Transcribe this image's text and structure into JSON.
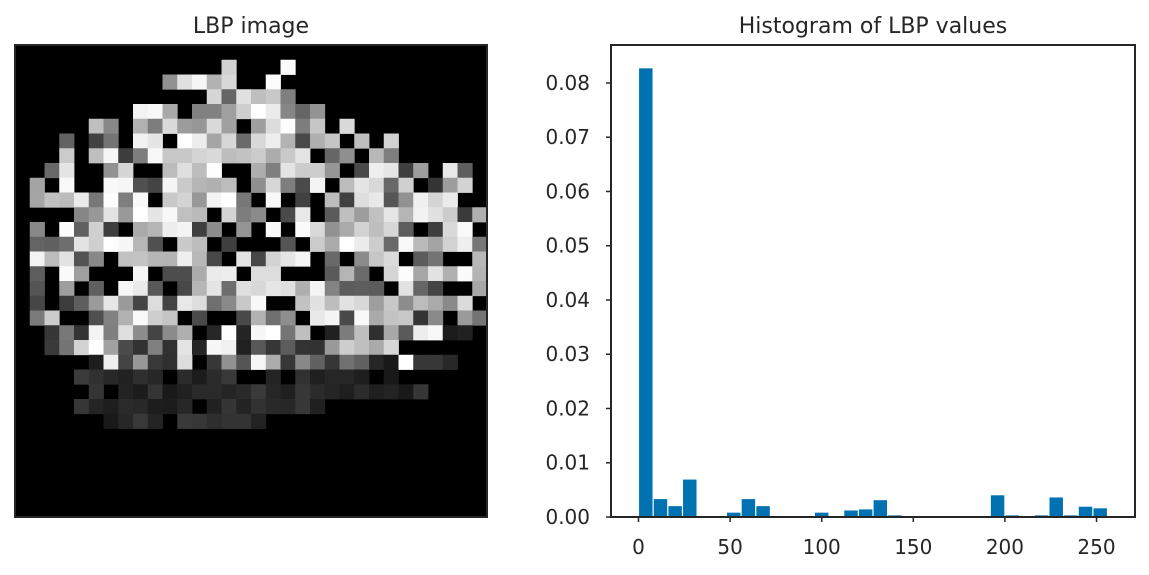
{
  "panels": {
    "left_title": "LBP image",
    "right_title": "Histogram of LBP values"
  },
  "image_panel": {
    "colormap": "gray",
    "grid_size": 32,
    "axes_ticks": "none"
  },
  "chart_data": {
    "type": "bar",
    "title": "Histogram of LBP values",
    "xlabel": "",
    "ylabel": "",
    "bar_color": "#0072b2",
    "xlim": [
      -15,
      271
    ],
    "ylim": [
      0,
      0.087
    ],
    "xticks": [
      0,
      50,
      100,
      150,
      200,
      250
    ],
    "yticks": [
      0.0,
      0.01,
      0.02,
      0.03,
      0.04,
      0.05,
      0.06,
      0.07,
      0.08
    ],
    "ytick_labels": [
      "0.00",
      "0.01",
      "0.02",
      "0.03",
      "0.04",
      "0.05",
      "0.06",
      "0.07",
      "0.08"
    ],
    "bin_width": 8,
    "bars": [
      {
        "x": 0,
        "value": 0.0827
      },
      {
        "x": 8,
        "value": 0.0033
      },
      {
        "x": 16,
        "value": 0.002
      },
      {
        "x": 24,
        "value": 0.0069
      },
      {
        "x": 48,
        "value": 0.0008
      },
      {
        "x": 56,
        "value": 0.0033
      },
      {
        "x": 64,
        "value": 0.002
      },
      {
        "x": 96,
        "value": 0.0008
      },
      {
        "x": 112,
        "value": 0.0012
      },
      {
        "x": 120,
        "value": 0.0014
      },
      {
        "x": 128,
        "value": 0.0031
      },
      {
        "x": 136,
        "value": 0.0003
      },
      {
        "x": 192,
        "value": 0.004
      },
      {
        "x": 200,
        "value": 0.0003
      },
      {
        "x": 216,
        "value": 0.0003
      },
      {
        "x": 224,
        "value": 0.0036
      },
      {
        "x": 232,
        "value": 0.0003
      },
      {
        "x": 240,
        "value": 0.0019
      },
      {
        "x": 248,
        "value": 0.0016
      }
    ]
  }
}
